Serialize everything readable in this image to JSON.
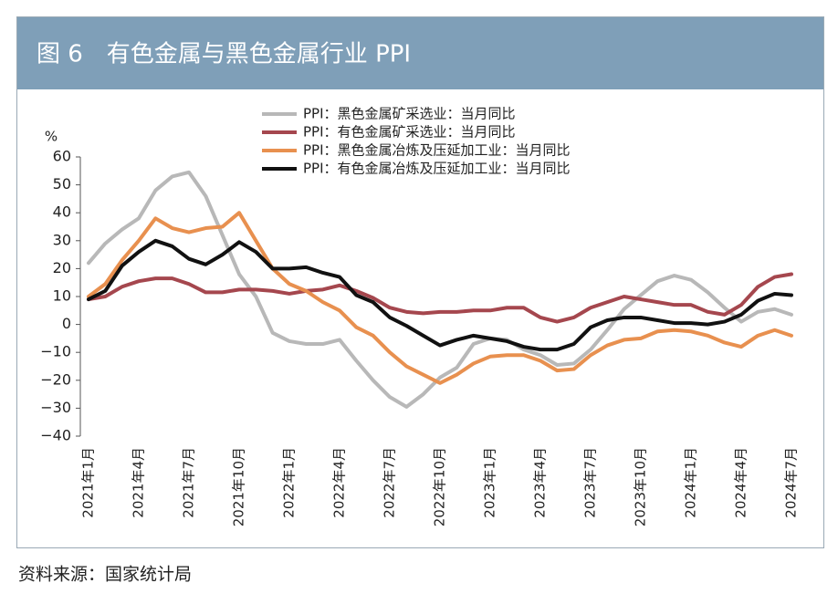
{
  "chart_data": {
    "type": "line",
    "title": "图 6　有色金属与黑色金属行业 PPI",
    "y_label": "%",
    "source": "资料来源：国家统计局",
    "categories": [
      "2021年1月",
      null,
      null,
      "2021年4月",
      null,
      null,
      "2021年7月",
      null,
      null,
      "2021年10月",
      null,
      null,
      "2022年1月",
      null,
      null,
      "2022年4月",
      null,
      null,
      "2022年7月",
      null,
      null,
      "2022年10月",
      null,
      null,
      "2023年1月",
      null,
      null,
      "2023年4月",
      null,
      null,
      "2023年7月",
      null,
      null,
      "2023年10月",
      null,
      null,
      "2024年1月",
      null,
      null,
      "2024年4月",
      null,
      null,
      "2024年7月"
    ],
    "ylim": [
      -40,
      60
    ],
    "yticks": [
      60,
      50,
      40,
      30,
      20,
      10,
      0,
      -10,
      -20,
      -30,
      -40
    ],
    "series": [
      {
        "name": "PPI：黑色金属矿采选业：当月同比",
        "color": "#b8b8b8",
        "values": [
          22,
          29,
          34,
          38,
          48,
          53,
          54.5,
          46,
          32,
          18,
          10,
          -3,
          -6,
          -7,
          -7,
          -5.5,
          -13,
          -20,
          -26,
          -29.5,
          -25,
          -19,
          -15.5,
          -7,
          -5,
          -5.5,
          -9,
          -11,
          -14.5,
          -14,
          -9,
          -2,
          5.5,
          10.5,
          15.5,
          17.5,
          16,
          11.5,
          6,
          1,
          4.5,
          5.5,
          3.5
        ]
      },
      {
        "name": "PPI：有色金属矿采选业：当月同比",
        "color": "#a5474e",
        "values": [
          9,
          10,
          13.5,
          15.5,
          16.5,
          16.5,
          14.5,
          11.5,
          11.5,
          12.5,
          12.5,
          12,
          11,
          12,
          12.5,
          14,
          12,
          9.5,
          6,
          4.5,
          4,
          4.5,
          4.5,
          5,
          5,
          6,
          6,
          2.5,
          1,
          2.5,
          6,
          8,
          10,
          9,
          8,
          7,
          7,
          4.5,
          3.5,
          7,
          13.5,
          17,
          18
        ]
      },
      {
        "name": "PPI：黑色金属冶炼及压延加工业：当月同比",
        "color": "#e8904f",
        "values": [
          10,
          14.5,
          23,
          30,
          38,
          34.5,
          33,
          34.5,
          35,
          40,
          30,
          20,
          14.5,
          12,
          8,
          5,
          -1,
          -4,
          -10,
          -15,
          -18,
          -21,
          -18,
          -14,
          -11.5,
          -11,
          -11,
          -13,
          -16.5,
          -16,
          -11,
          -7.5,
          -5.5,
          -5,
          -2.5,
          -2,
          -2.5,
          -4,
          -6.5,
          -8,
          -4,
          -2,
          -4
        ]
      },
      {
        "name": "PPI：有色金属冶炼及压延加工业：当月同比",
        "color": "#111111",
        "values": [
          9,
          12,
          21,
          26,
          30,
          28,
          23.5,
          21.5,
          25,
          29.5,
          26,
          20,
          20,
          20.5,
          18.5,
          17,
          10.5,
          8,
          2.5,
          -0.5,
          -4,
          -7.5,
          -5.5,
          -4,
          -5,
          -6,
          -8,
          -9,
          -9,
          -7,
          -1,
          1.5,
          2.5,
          2.5,
          1.5,
          0.5,
          0.5,
          0,
          1,
          3.5,
          8.5,
          11,
          10.5
        ]
      }
    ]
  }
}
